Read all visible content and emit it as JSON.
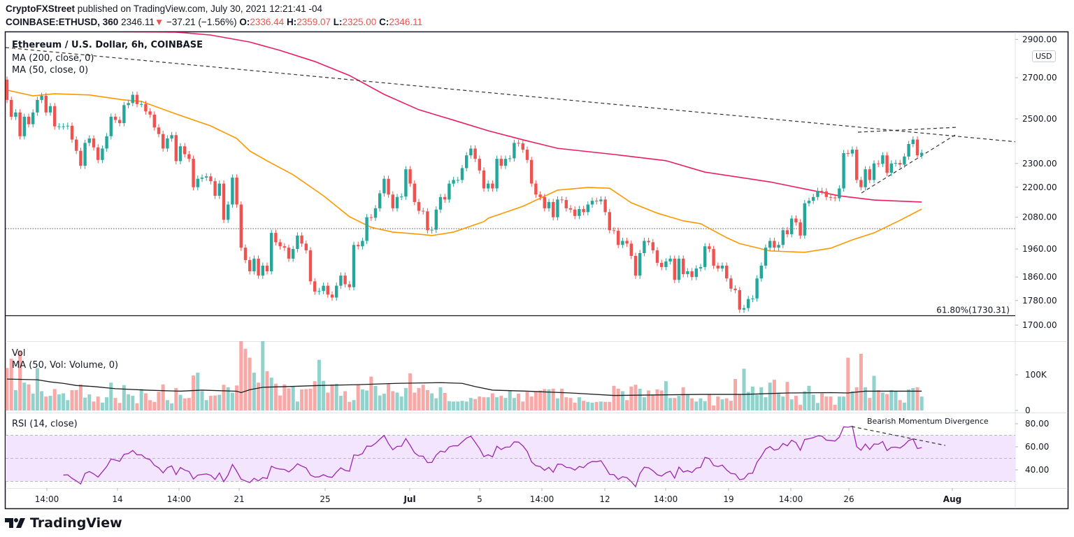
{
  "header": {
    "author": "CryptoFXStreet",
    "published": " published on TradingView.com, July 30, 2021 12:21:41 -04",
    "symbol": "COINBASE:ETHUSD, 360",
    "last": "2346.11",
    "change": "−37.21 (−1.56%)",
    "o_label": "O:",
    "o": "2336.44",
    "h_label": "H:",
    "h": "2359.07",
    "l_label": "L:",
    "l": "2325.00",
    "c_label": "C:",
    "c": "2346.11"
  },
  "legend": {
    "title": "Ethereum / U.S. Dollar, 6h, COINBASE",
    "ma200": "MA (200, close, 0)",
    "ma50": "MA (50, close, 0)",
    "vol": "Vol",
    "vol_ma": "MA (50, Vol: Volume, 0)",
    "rsi": "RSI (14, close)"
  },
  "currency_badge": "USD",
  "annotations": {
    "fib_label": "61.80%(1730.31)",
    "fib_level": 1730.31,
    "rsi_note": "Bearish Momentum Divergence"
  },
  "brand": "TradingView",
  "colors": {
    "up": "#26a69a",
    "down": "#ef5350",
    "ma200": "#e91e63",
    "ma50": "#ff9800",
    "rsi": "#9c27b0",
    "rsi_band": "#f3e5fd",
    "vol_ma": "#1e1e1e"
  },
  "chart_data": [
    {
      "type": "candlestick",
      "title": "Ethereum / U.S. Dollar, 6h, COINBASE",
      "yscale": "log",
      "ylim": [
        1680,
        2950
      ],
      "y_ticks": [
        "2900.00",
        "2700.00",
        "2500.00",
        "2300.00",
        "2200.00",
        "2080.00",
        "1960.00",
        "1860.00",
        "1780.00",
        "1700.00"
      ],
      "x_ticks": [
        "14:00",
        "14",
        "14:00",
        "21",
        "25",
        "Jul",
        "5",
        "14:00",
        "12",
        "14:00",
        "19",
        "14:00",
        "26",
        "Aug"
      ],
      "first_open": 2690,
      "closes": [
        2590,
        2510,
        2530,
        2420,
        2510,
        2475,
        2530,
        2590,
        2610,
        2530,
        2560,
        2465,
        2465,
        2465,
        2468,
        2405,
        2355,
        2290,
        2390,
        2410,
        2370,
        2315,
        2365,
        2420,
        2510,
        2495,
        2480,
        2565,
        2575,
        2615,
        2570,
        2570,
        2535,
        2520,
        2460,
        2430,
        2365,
        2410,
        2425,
        2310,
        2375,
        2340,
        2320,
        2200,
        2235,
        2240,
        2245,
        2225,
        2165,
        2215,
        2070,
        2130,
        2240,
        2130,
        1965,
        1920,
        1880,
        1925,
        1865,
        1900,
        1880,
        2020,
        1985,
        1970,
        1965,
        1925,
        1960,
        2010,
        1980,
        1955,
        1845,
        1810,
        1812,
        1830,
        1800,
        1790,
        1830,
        1865,
        1835,
        1825,
        1975,
        1970,
        1990,
        2080,
        2078,
        2115,
        2175,
        2235,
        2170,
        2115,
        2160,
        2162,
        2275,
        2215,
        2140,
        2105,
        2103,
        2030,
        2032,
        2110,
        2160,
        2150,
        2215,
        2230,
        2230,
        2280,
        2335,
        2365,
        2320,
        2270,
        2195,
        2215,
        2195,
        2320,
        2290,
        2320,
        2322,
        2390,
        2388,
        2360,
        2315,
        2215,
        2170,
        2160,
        2115,
        2140,
        2080,
        2150,
        2148,
        2115,
        2110,
        2085,
        2112,
        2100,
        2130,
        2145,
        2143,
        2150,
        2100,
        2030,
        2028,
        1975,
        1990,
        1980,
        1935,
        1865,
        1945,
        1990,
        1985,
        1955,
        1910,
        1895,
        1915,
        1925,
        1850,
        1925,
        1870,
        1880,
        1860,
        1890,
        1895,
        1970,
        1960,
        1900,
        1890,
        1900,
        1855,
        1820,
        1815,
        1750,
        1755,
        1785,
        1787,
        1855,
        1900,
        1965,
        1990,
        1965,
        1975,
        2030,
        2015,
        2075,
        2060,
        2010,
        2135,
        2145,
        2160,
        2185,
        2183,
        2160,
        2158,
        2155,
        2195,
        2345,
        2343,
        2360,
        2230,
        2200,
        2275,
        2230,
        2300,
        2298,
        2335,
        2260,
        2300,
        2302,
        2295,
        2330,
        2385,
        2405,
        2335,
        2346.11
      ],
      "series": [
        {
          "name": "MA (200, close, 0)",
          "points": [
            [
              0,
              2948
            ],
            [
              39,
              2940
            ],
            [
              47,
              2924
            ],
            [
              56,
              2886
            ],
            [
              63,
              2841
            ],
            [
              71,
              2783
            ],
            [
              79,
              2711
            ],
            [
              87,
              2617
            ],
            [
              95,
              2543
            ],
            [
              103,
              2494
            ],
            [
              111,
              2445
            ],
            [
              119,
              2404
            ],
            [
              127,
              2366
            ],
            [
              140,
              2339
            ],
            [
              152,
              2312
            ],
            [
              161,
              2263
            ],
            [
              176,
              2222
            ],
            [
              184,
              2193
            ],
            [
              192,
              2165
            ],
            [
              200,
              2148
            ],
            [
              211,
              2140
            ]
          ]
        },
        {
          "name": "MA (50, close, 0)",
          "points": [
            [
              0,
              2638
            ],
            [
              6,
              2610
            ],
            [
              11,
              2620
            ],
            [
              19,
              2614
            ],
            [
              27,
              2590
            ],
            [
              31,
              2583
            ],
            [
              39,
              2523
            ],
            [
              47,
              2467
            ],
            [
              53,
              2410
            ],
            [
              56,
              2354
            ],
            [
              60,
              2311
            ],
            [
              66,
              2252
            ],
            [
              73,
              2165
            ],
            [
              79,
              2082
            ],
            [
              84,
              2041
            ],
            [
              89,
              2023
            ],
            [
              95,
              2015
            ],
            [
              98,
              2010
            ],
            [
              103,
              2023
            ],
            [
              110,
              2063
            ],
            [
              111,
              2076
            ],
            [
              119,
              2123
            ],
            [
              127,
              2188
            ],
            [
              134,
              2199
            ],
            [
              139,
              2196
            ],
            [
              144,
              2137
            ],
            [
              150,
              2096
            ],
            [
              156,
              2066
            ],
            [
              160,
              2055
            ],
            [
              166,
              2002
            ],
            [
              169,
              1980
            ],
            [
              176,
              1953
            ],
            [
              184,
              1948
            ],
            [
              190,
              1963
            ],
            [
              195,
              1994
            ],
            [
              200,
              2020
            ],
            [
              206,
              2068
            ],
            [
              211,
              2112
            ]
          ]
        }
      ]
    },
    {
      "type": "bar",
      "title": "Vol",
      "y_ticks": [
        "100K",
        "0"
      ],
      "volumes_k": [
        119,
        145,
        57,
        168,
        78,
        73,
        47,
        119,
        54,
        39,
        41,
        60,
        45,
        48,
        29,
        57,
        57,
        73,
        36,
        45,
        25,
        39,
        22,
        37,
        78,
        35,
        21,
        71,
        45,
        41,
        20,
        60,
        48,
        29,
        24,
        52,
        73,
        29,
        20,
        63,
        44,
        34,
        35,
        98,
        106,
        54,
        29,
        41,
        42,
        44,
        72,
        65,
        50,
        70,
        194,
        173,
        148,
        106,
        78,
        194,
        110,
        92,
        75,
        42,
        73,
        62,
        67,
        25,
        59,
        60,
        61,
        82,
        142,
        83,
        50,
        73,
        75,
        41,
        54,
        24,
        29,
        73,
        59,
        56,
        95,
        69,
        42,
        47,
        75,
        54,
        50,
        39,
        63,
        104,
        50,
        63,
        72,
        57,
        48,
        34,
        65,
        49,
        26,
        25,
        25,
        27,
        25,
        35,
        32,
        39,
        37,
        37,
        48,
        37,
        41,
        35,
        57,
        35,
        47,
        25,
        52,
        39,
        52,
        56,
        60,
        59,
        61,
        34,
        61,
        37,
        35,
        22,
        37,
        27,
        24,
        22,
        24,
        25,
        24,
        24,
        69,
        61,
        54,
        29,
        67,
        72,
        61,
        37,
        56,
        44,
        59,
        56,
        82,
        35,
        35,
        41,
        65,
        46,
        34,
        25,
        34,
        26,
        45,
        14,
        39,
        31,
        34,
        27,
        88,
        45,
        117,
        52,
        67,
        44,
        65,
        37,
        78,
        86,
        50,
        39,
        80,
        31,
        41,
        16,
        54,
        69,
        44,
        21,
        48,
        39,
        39,
        16,
        39,
        39,
        148,
        54,
        65,
        159,
        65,
        35,
        97,
        57,
        50,
        46,
        57,
        54,
        29,
        22,
        59,
        63,
        65,
        39
      ],
      "series": [
        {
          "name": "MA (50, Vol: Volume, 0)",
          "points": [
            [
              0,
              88
            ],
            [
              7,
              86
            ],
            [
              10,
              80
            ],
            [
              13,
              76
            ],
            [
              16,
              70
            ],
            [
              20,
              67
            ],
            [
              25,
              61
            ],
            [
              32,
              57
            ],
            [
              40,
              54
            ],
            [
              45,
              57
            ],
            [
              53,
              54
            ],
            [
              54,
              50
            ],
            [
              56,
              58
            ],
            [
              59,
              65
            ],
            [
              65,
              67
            ],
            [
              72,
              70
            ],
            [
              80,
              72
            ],
            [
              90,
              76
            ],
            [
              100,
              78
            ],
            [
              105,
              76
            ],
            [
              108,
              67
            ],
            [
              112,
              57
            ],
            [
              120,
              54
            ],
            [
              130,
              49
            ],
            [
              140,
              42
            ],
            [
              160,
              45
            ],
            [
              170,
              45
            ],
            [
              180,
              49
            ],
            [
              190,
              50
            ],
            [
              194,
              49
            ],
            [
              198,
              54
            ],
            [
              211,
              54
            ]
          ]
        }
      ]
    },
    {
      "type": "line",
      "title": "RSI (14, close)",
      "y_ticks": [
        "80.00",
        "60.00",
        "40.00"
      ],
      "bands": {
        "upper": 70,
        "middle": 50,
        "lower": 30
      },
      "annotation": "Bearish Momentum Divergence"
    }
  ]
}
